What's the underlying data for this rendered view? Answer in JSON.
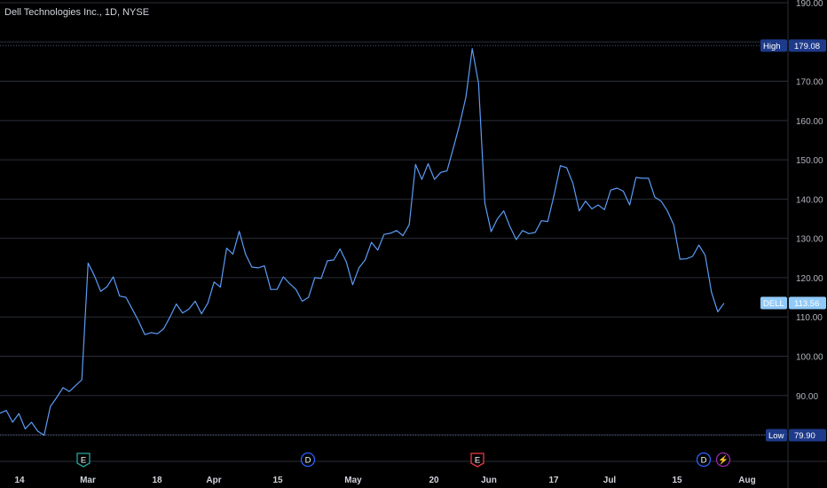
{
  "title": "Dell Technologies Inc., 1D, NYSE",
  "colors": {
    "background": "#000000",
    "line": "#5b9cf6",
    "grid": "#2a2e39",
    "high_low_tag": "#1e3a8a",
    "last_tag": "#90caf9",
    "earnings": "#26a69a",
    "earnings_alt": "#f23645",
    "dividend": "#2962ff",
    "split": "#9c27b0"
  },
  "chart_data": {
    "type": "line",
    "symbol": "DELL",
    "y_ticks": [
      "190.00",
      "180.00",
      "170.00",
      "160.00",
      "150.00",
      "140.00",
      "130.00",
      "120.00",
      "110.00",
      "100.00",
      "90.00",
      "80.00"
    ],
    "ylim": [
      78,
      192
    ],
    "x_labels": [
      "14",
      "Mar",
      "18",
      "Apr",
      "15",
      "May",
      "20",
      "Jun",
      "17",
      "Jul",
      "15",
      "Aug"
    ],
    "grid": true,
    "high": {
      "label": "High",
      "value": "179.08"
    },
    "low": {
      "label": "Low",
      "value": "79.90"
    },
    "last": {
      "label": "DELL",
      "value": "113.56"
    },
    "events": [
      {
        "type": "earnings",
        "letter": "E",
        "color": "#26a69a"
      },
      {
        "type": "dividend",
        "letter": "D",
        "color": "#2962ff"
      },
      {
        "type": "earnings",
        "letter": "E",
        "color": "#f23645"
      },
      {
        "type": "dividend",
        "letter": "D",
        "color": "#2962ff"
      },
      {
        "type": "split",
        "letter": "⚡",
        "color": "#9c27b0"
      }
    ],
    "values": [
      85.5,
      86.2,
      83.2,
      85.4,
      81.5,
      83.2,
      80.9,
      79.9,
      87.2,
      89.5,
      92.0,
      91.0,
      92.5,
      94.0,
      123.7,
      120.5,
      116.5,
      117.7,
      120.2,
      115.3,
      115.0,
      112.0,
      109.0,
      105.5,
      106.0,
      105.7,
      107.0,
      110.0,
      113.3,
      111.0,
      112.0,
      114.0,
      110.8,
      113.5,
      118.9,
      117.6,
      127.5,
      126.0,
      131.8,
      126.0,
      122.7,
      122.5,
      123.0,
      117.0,
      117.0,
      120.2,
      118.5,
      117.0,
      114.0,
      115.0,
      120.0,
      119.8,
      124.3,
      124.5,
      127.3,
      124.0,
      118.2,
      122.5,
      124.5,
      129.0,
      127.0,
      131.0,
      131.3,
      132.0,
      130.7,
      133.5,
      148.8,
      145.0,
      149.0,
      145.0,
      146.8,
      147.2,
      153.0,
      159.0,
      166.0,
      178.3,
      169.5,
      139.0,
      131.7,
      135.0,
      137.0,
      133.0,
      129.7,
      132.0,
      131.2,
      131.5,
      134.5,
      134.3,
      141.0,
      148.5,
      148.0,
      144.0,
      137.0,
      139.5,
      137.5,
      138.5,
      137.3,
      142.3,
      142.8,
      142.0,
      138.5,
      145.5,
      145.3,
      145.3,
      140.5,
      139.5,
      137.0,
      133.5,
      124.7,
      124.8,
      125.4,
      128.3,
      125.7,
      116.3,
      111.3,
      113.5
    ]
  }
}
